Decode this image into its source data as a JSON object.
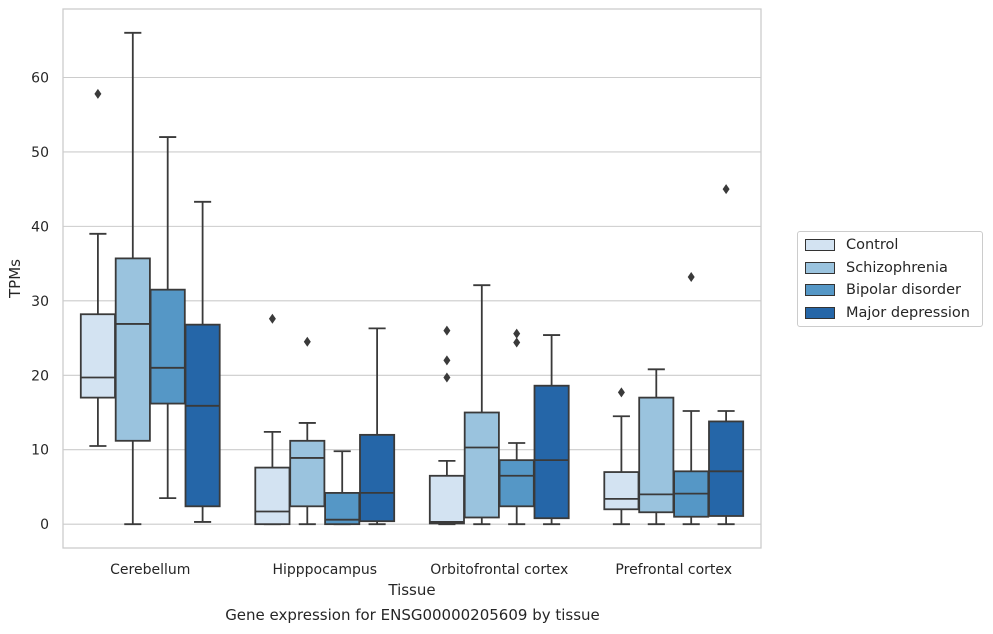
{
  "chart_data": {
    "type": "box",
    "title": "",
    "caption": "Gene expression for ENSG00000205609 by tissue",
    "xlabel": "Tissue",
    "ylabel": "TPMs",
    "ylim": [
      -3.2,
      69.2
    ],
    "yticks": [
      0,
      10,
      20,
      30,
      40,
      50,
      60
    ],
    "grid": "horizontal",
    "legend_position": "right",
    "categories": [
      "Cerebellum",
      "Hipppocampus",
      "Orbitofrontal cortex",
      "Prefrontal cortex"
    ],
    "series": [
      {
        "name": "Control",
        "color": "#d3e3f2",
        "boxes": [
          {
            "whislo": 10.5,
            "q1": 17.0,
            "med": 19.7,
            "q3": 28.2,
            "whishi": 39.0,
            "fliers": [
              57.8
            ]
          },
          {
            "whislo": 0.0,
            "q1": 0.0,
            "med": 1.7,
            "q3": 7.6,
            "whishi": 12.4,
            "fliers": [
              27.6
            ]
          },
          {
            "whislo": 0.0,
            "q1": 0.1,
            "med": 0.3,
            "q3": 6.5,
            "whishi": 8.5,
            "fliers": [
              19.7,
              22.0,
              26.0
            ]
          },
          {
            "whislo": 0.0,
            "q1": 2.0,
            "med": 3.4,
            "q3": 7.0,
            "whishi": 14.5,
            "fliers": [
              17.7
            ]
          }
        ]
      },
      {
        "name": "Schizophrenia",
        "color": "#9ac3de",
        "boxes": [
          {
            "whislo": 0.0,
            "q1": 11.2,
            "med": 26.9,
            "q3": 35.7,
            "whishi": 66.0,
            "fliers": []
          },
          {
            "whislo": 0.0,
            "q1": 2.4,
            "med": 8.9,
            "q3": 11.2,
            "whishi": 13.6,
            "fliers": [
              24.5
            ]
          },
          {
            "whislo": 0.0,
            "q1": 0.9,
            "med": 10.3,
            "q3": 15.0,
            "whishi": 32.1,
            "fliers": []
          },
          {
            "whislo": 0.0,
            "q1": 1.6,
            "med": 4.0,
            "q3": 17.0,
            "whishi": 20.8,
            "fliers": []
          }
        ]
      },
      {
        "name": "Bipolar disorder",
        "color": "#5597c6",
        "boxes": [
          {
            "whislo": 3.5,
            "q1": 16.2,
            "med": 21.0,
            "q3": 31.5,
            "whishi": 52.0,
            "fliers": []
          },
          {
            "whislo": 0.0,
            "q1": 0.0,
            "med": 0.6,
            "q3": 4.2,
            "whishi": 9.8,
            "fliers": []
          },
          {
            "whislo": 0.0,
            "q1": 2.4,
            "med": 6.5,
            "q3": 8.6,
            "whishi": 10.9,
            "fliers": [
              24.4,
              25.6
            ]
          },
          {
            "whislo": 0.0,
            "q1": 1.0,
            "med": 4.1,
            "q3": 7.1,
            "whishi": 15.2,
            "fliers": [
              33.2
            ]
          }
        ]
      },
      {
        "name": "Major depression",
        "color": "#2566a8",
        "boxes": [
          {
            "whislo": 0.3,
            "q1": 2.4,
            "med": 15.9,
            "q3": 26.8,
            "whishi": 43.3,
            "fliers": []
          },
          {
            "whislo": 0.0,
            "q1": 0.4,
            "med": 4.2,
            "q3": 12.0,
            "whishi": 26.3,
            "fliers": []
          },
          {
            "whislo": 0.0,
            "q1": 0.8,
            "med": 8.6,
            "q3": 18.6,
            "whishi": 25.4,
            "fliers": []
          },
          {
            "whislo": 0.0,
            "q1": 1.1,
            "med": 7.1,
            "q3": 13.8,
            "whishi": 15.2,
            "fliers": [
              45.0
            ]
          }
        ]
      }
    ]
  }
}
